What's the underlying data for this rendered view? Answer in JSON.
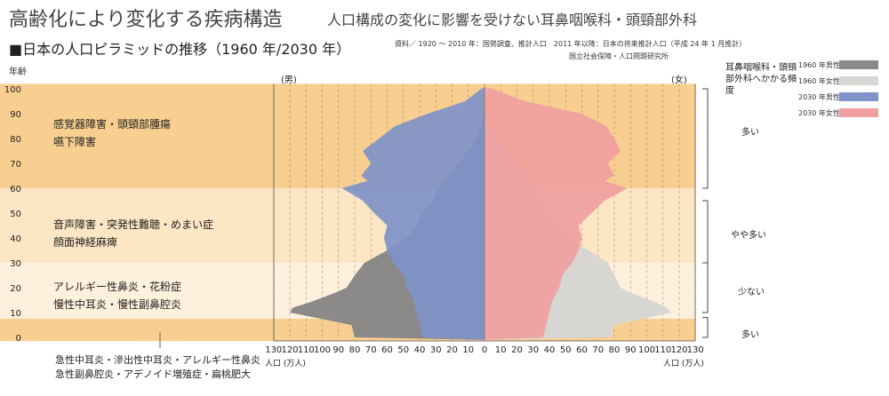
{
  "header": {
    "title": "高齢化により変化する疾病構造",
    "subtitle": "人口構成の変化に影響を受けない耳鼻咽喉科・頭頸部外科",
    "chart_title": "■日本の人口ピラミッドの推移（1960 年/2030 年）",
    "source_line1": "資料／ 1920 〜 2010 年：国勢調査、推計人口　2011 年以降：日本の将来推計人口（平成 24 年 1 月推計）",
    "source_line2": "国立社会保障・人口問題研究所"
  },
  "axis": {
    "y_unit": "年齢",
    "male_label": "(男)",
    "female_label": "(女)",
    "pop_unit_left": "人口 (万人)",
    "pop_unit_right": "人口 (万人)"
  },
  "ent_frequency": {
    "title": "耳鼻咽喉科・頭頸部外科へかかる頻度",
    "bands": [
      {
        "ages": "60-100",
        "label": "多い"
      },
      {
        "ages": "30-55",
        "label": "やや多い"
      },
      {
        "ages": "10-30",
        "label": "少ない"
      },
      {
        "ages": "0-8",
        "label": "多い"
      }
    ]
  },
  "diseases": {
    "elderly": [
      "感覚器障害・頭頸部腫瘍",
      "嚥下障害"
    ],
    "middle": [
      "音声障害・突発性難聴・めまい症",
      "顔面神経麻痺"
    ],
    "young": [
      "アレルギー性鼻炎・花粉症",
      "慢性中耳炎・慢性副鼻腔炎"
    ],
    "children": [
      "急性中耳炎・滲出性中耳炎・アレルギー性鼻炎",
      "急性副鼻腔炎・アデノイド増殖症・扁桃肥大"
    ]
  },
  "colors": {
    "male_1960": "#8c8a88",
    "female_1960": "#d8d6d2",
    "male_2030": "#7f93c8",
    "female_2030": "#f0a0a0",
    "band_orange": "#f8cf90",
    "band_light": "#fce6c4",
    "band_pale": "#fdf0dd"
  },
  "chart_data": {
    "type": "bar",
    "orientation": "horizontal-pyramid",
    "x_ticks": [
      130,
      120,
      110,
      100,
      90,
      80,
      70,
      60,
      50,
      40,
      30,
      20,
      10,
      0,
      10,
      20,
      30,
      40,
      50,
      60,
      70,
      80,
      90,
      100,
      110,
      120,
      130
    ],
    "y_ticks": [
      0,
      10,
      20,
      30,
      40,
      50,
      60,
      70,
      80,
      90,
      100
    ],
    "xlim": [
      0,
      130
    ],
    "ylim": [
      0,
      100
    ],
    "xlabel": "人口 (万人)",
    "ylabel": "年齢",
    "series": [
      {
        "name": "1960 年男性",
        "ages": [
          0,
          5,
          10,
          12,
          14,
          16,
          18,
          20,
          25,
          30,
          35,
          40,
          45,
          50,
          55,
          60,
          65,
          70,
          75,
          80,
          85,
          90
        ],
        "values": [
          80,
          82,
          120,
          118,
          108,
          100,
          92,
          85,
          80,
          74,
          60,
          48,
          42,
          38,
          32,
          28,
          22,
          16,
          10,
          5,
          2,
          0
        ]
      },
      {
        "name": "1960 年女性",
        "ages": [
          0,
          5,
          10,
          12,
          14,
          16,
          18,
          20,
          25,
          30,
          35,
          40,
          45,
          50,
          55,
          60,
          65,
          70,
          75,
          80,
          85,
          90
        ],
        "values": [
          78,
          80,
          115,
          112,
          106,
          98,
          90,
          84,
          80,
          76,
          64,
          52,
          46,
          40,
          35,
          32,
          26,
          20,
          14,
          8,
          3,
          1
        ]
      },
      {
        "name": "2030 年男性",
        "ages": [
          0,
          5,
          10,
          15,
          20,
          25,
          30,
          35,
          40,
          45,
          50,
          55,
          57,
          60,
          63,
          65,
          70,
          75,
          80,
          85,
          90,
          95,
          100
        ],
        "values": [
          38,
          40,
          42,
          44,
          48,
          50,
          56,
          60,
          62,
          60,
          68,
          75,
          80,
          88,
          72,
          76,
          70,
          75,
          65,
          55,
          35,
          12,
          2
        ]
      },
      {
        "name": "2030 年女性",
        "ages": [
          0,
          5,
          10,
          15,
          20,
          25,
          30,
          35,
          40,
          45,
          50,
          55,
          57,
          60,
          63,
          65,
          70,
          75,
          80,
          85,
          90,
          95,
          100
        ],
        "values": [
          36,
          38,
          40,
          42,
          46,
          48,
          54,
          58,
          60,
          58,
          66,
          74,
          80,
          88,
          74,
          80,
          76,
          84,
          80,
          75,
          60,
          25,
          5
        ]
      }
    ],
    "legend": [
      "1960 年男性",
      "1960 年女性",
      "2030 年男性",
      "2030 年女性"
    ]
  }
}
